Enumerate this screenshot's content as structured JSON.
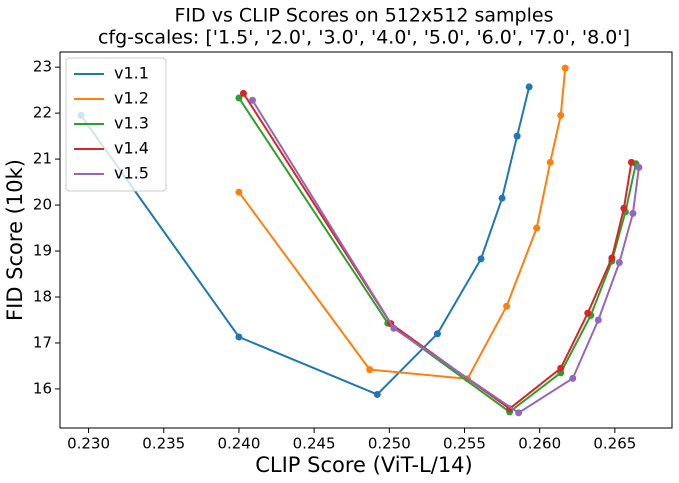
{
  "chart_data": {
    "type": "line",
    "title": "FID vs CLIP Scores on 512x512 samples",
    "subtitle": "cfg-scales: ['1.5', '2.0', '3.0', '4.0', '5.0', '6.0', '7.0', '8.0']",
    "x_label": "CLIP Score (ViT-L/14)",
    "y_label": "FID Score (10k)",
    "xlim": [
      0.2281,
      0.2688
    ],
    "ylim": [
      15.15,
      23.33
    ],
    "xticks": [
      {
        "value": 0.23,
        "label": "0.230"
      },
      0.235,
      {
        "value": 0.24,
        "label": "0.240"
      },
      0.245,
      {
        "value": 0.25,
        "label": "0.250"
      },
      0.255,
      {
        "value": 0.26,
        "label": "0.260"
      },
      0.265
    ],
    "yticks": [
      16,
      17,
      18,
      19,
      20,
      21,
      22,
      23
    ],
    "legend": "upper left",
    "markers": true,
    "series": [
      {
        "name": "v1.1",
        "color": "#1f77b4",
        "x": [
          0.2295,
          0.24,
          0.2492,
          0.2532,
          0.2561,
          0.2575,
          0.2585,
          0.2593
        ],
        "values": [
          21.95,
          17.13,
          15.88,
          17.2,
          18.83,
          20.15,
          21.5,
          22.57
        ]
      },
      {
        "name": "v1.2",
        "color": "#ff7f0e",
        "x": [
          0.24,
          0.2487,
          0.2552,
          0.2578,
          0.2598,
          0.2607,
          0.2614,
          0.2617
        ],
        "values": [
          20.28,
          16.42,
          16.22,
          17.8,
          19.5,
          20.93,
          21.95,
          22.98
        ]
      },
      {
        "name": "v1.3",
        "color": "#2ca02c",
        "x": [
          0.24,
          0.2499,
          0.258,
          0.2614,
          0.2634,
          0.2648,
          0.2657,
          0.2664
        ],
        "values": [
          22.33,
          17.43,
          15.5,
          16.35,
          17.6,
          18.78,
          19.85,
          20.9
        ]
      },
      {
        "name": "v1.4",
        "color": "#d62728",
        "x": [
          0.2403,
          0.2501,
          0.258,
          0.2614,
          0.2632,
          0.2648,
          0.2656,
          0.2661
        ],
        "values": [
          22.43,
          17.42,
          15.57,
          16.45,
          17.65,
          18.85,
          19.93,
          20.93
        ]
      },
      {
        "name": "v1.5",
        "color": "#9467bd",
        "x": [
          0.2409,
          0.2503,
          0.2586,
          0.2622,
          0.2639,
          0.2653,
          0.2662,
          0.2666
        ],
        "values": [
          22.28,
          17.32,
          15.48,
          16.23,
          17.5,
          18.75,
          19.82,
          20.82
        ]
      }
    ]
  }
}
